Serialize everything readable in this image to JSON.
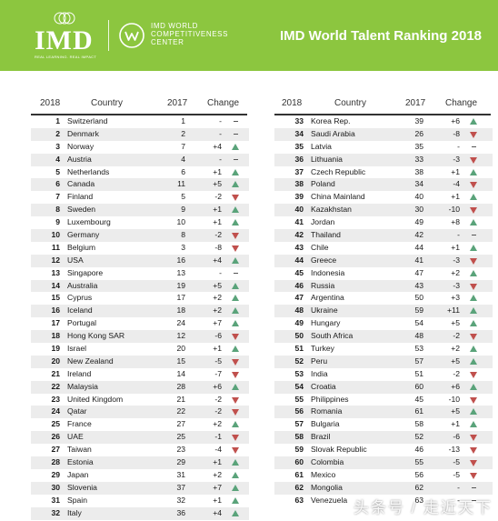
{
  "header": {
    "imd_logo": "IMD",
    "imd_tagline": "REAL LEARNING. REAL IMPACT",
    "wcc_line1": "IMD WORLD",
    "wcc_line2": "COMPETITIVENESS",
    "wcc_line3": "CENTER",
    "title": "IMD World Talent Ranking 2018",
    "brand_color": "#8cc63f"
  },
  "columns": {
    "rank": "2018",
    "country": "Country",
    "prev": "2017",
    "change": "Change"
  },
  "colors": {
    "up": "#5aa37a",
    "down": "#c0504d"
  },
  "left_rows": [
    {
      "rank": "1",
      "country": "Switzerland",
      "prev": "1",
      "change": "-",
      "dir": "none"
    },
    {
      "rank": "2",
      "country": "Denmark",
      "prev": "2",
      "change": "-",
      "dir": "none"
    },
    {
      "rank": "3",
      "country": "Norway",
      "prev": "7",
      "change": "+4",
      "dir": "up"
    },
    {
      "rank": "4",
      "country": "Austria",
      "prev": "4",
      "change": "-",
      "dir": "none"
    },
    {
      "rank": "5",
      "country": "Netherlands",
      "prev": "6",
      "change": "+1",
      "dir": "up"
    },
    {
      "rank": "6",
      "country": "Canada",
      "prev": "11",
      "change": "+5",
      "dir": "up"
    },
    {
      "rank": "7",
      "country": "Finland",
      "prev": "5",
      "change": "-2",
      "dir": "down"
    },
    {
      "rank": "8",
      "country": "Sweden",
      "prev": "9",
      "change": "+1",
      "dir": "up"
    },
    {
      "rank": "9",
      "country": "Luxembourg",
      "prev": "10",
      "change": "+1",
      "dir": "up"
    },
    {
      "rank": "10",
      "country": "Germany",
      "prev": "8",
      "change": "-2",
      "dir": "down"
    },
    {
      "rank": "11",
      "country": "Belgium",
      "prev": "3",
      "change": "-8",
      "dir": "down"
    },
    {
      "rank": "12",
      "country": "USA",
      "prev": "16",
      "change": "+4",
      "dir": "up"
    },
    {
      "rank": "13",
      "country": "Singapore",
      "prev": "13",
      "change": "-",
      "dir": "none"
    },
    {
      "rank": "14",
      "country": "Australia",
      "prev": "19",
      "change": "+5",
      "dir": "up"
    },
    {
      "rank": "15",
      "country": "Cyprus",
      "prev": "17",
      "change": "+2",
      "dir": "up"
    },
    {
      "rank": "16",
      "country": "Iceland",
      "prev": "18",
      "change": "+2",
      "dir": "up"
    },
    {
      "rank": "17",
      "country": "Portugal",
      "prev": "24",
      "change": "+7",
      "dir": "up"
    },
    {
      "rank": "18",
      "country": "Hong Kong SAR",
      "prev": "12",
      "change": "-6",
      "dir": "down"
    },
    {
      "rank": "19",
      "country": "Israel",
      "prev": "20",
      "change": "+1",
      "dir": "up"
    },
    {
      "rank": "20",
      "country": "New Zealand",
      "prev": "15",
      "change": "-5",
      "dir": "down"
    },
    {
      "rank": "21",
      "country": "Ireland",
      "prev": "14",
      "change": "-7",
      "dir": "down"
    },
    {
      "rank": "22",
      "country": "Malaysia",
      "prev": "28",
      "change": "+6",
      "dir": "up"
    },
    {
      "rank": "23",
      "country": "United Kingdom",
      "prev": "21",
      "change": "-2",
      "dir": "down"
    },
    {
      "rank": "24",
      "country": "Qatar",
      "prev": "22",
      "change": "-2",
      "dir": "down"
    },
    {
      "rank": "25",
      "country": "France",
      "prev": "27",
      "change": "+2",
      "dir": "up"
    },
    {
      "rank": "26",
      "country": "UAE",
      "prev": "25",
      "change": "-1",
      "dir": "down"
    },
    {
      "rank": "27",
      "country": "Taiwan",
      "prev": "23",
      "change": "-4",
      "dir": "down"
    },
    {
      "rank": "28",
      "country": "Estonia",
      "prev": "29",
      "change": "+1",
      "dir": "up"
    },
    {
      "rank": "29",
      "country": "Japan",
      "prev": "31",
      "change": "+2",
      "dir": "up"
    },
    {
      "rank": "30",
      "country": "Slovenia",
      "prev": "37",
      "change": "+7",
      "dir": "up"
    },
    {
      "rank": "31",
      "country": "Spain",
      "prev": "32",
      "change": "+1",
      "dir": "up"
    },
    {
      "rank": "32",
      "country": "Italy",
      "prev": "36",
      "change": "+4",
      "dir": "up"
    }
  ],
  "right_rows": [
    {
      "rank": "33",
      "country": "Korea Rep.",
      "prev": "39",
      "change": "+6",
      "dir": "up"
    },
    {
      "rank": "34",
      "country": "Saudi Arabia",
      "prev": "26",
      "change": "-8",
      "dir": "down"
    },
    {
      "rank": "35",
      "country": "Latvia",
      "prev": "35",
      "change": "-",
      "dir": "none"
    },
    {
      "rank": "36",
      "country": "Lithuania",
      "prev": "33",
      "change": "-3",
      "dir": "down"
    },
    {
      "rank": "37",
      "country": "Czech Republic",
      "prev": "38",
      "change": "+1",
      "dir": "up"
    },
    {
      "rank": "38",
      "country": "Poland",
      "prev": "34",
      "change": "-4",
      "dir": "down"
    },
    {
      "rank": "39",
      "country": "China Mainland",
      "prev": "40",
      "change": "+1",
      "dir": "up"
    },
    {
      "rank": "40",
      "country": "Kazakhstan",
      "prev": "30",
      "change": "-10",
      "dir": "down"
    },
    {
      "rank": "41",
      "country": "Jordan",
      "prev": "49",
      "change": "+8",
      "dir": "up"
    },
    {
      "rank": "42",
      "country": "Thailand",
      "prev": "42",
      "change": "-",
      "dir": "none"
    },
    {
      "rank": "43",
      "country": "Chile",
      "prev": "44",
      "change": "+1",
      "dir": "up"
    },
    {
      "rank": "44",
      "country": "Greece",
      "prev": "41",
      "change": "-3",
      "dir": "down"
    },
    {
      "rank": "45",
      "country": "Indonesia",
      "prev": "47",
      "change": "+2",
      "dir": "up"
    },
    {
      "rank": "46",
      "country": "Russia",
      "prev": "43",
      "change": "-3",
      "dir": "down"
    },
    {
      "rank": "47",
      "country": "Argentina",
      "prev": "50",
      "change": "+3",
      "dir": "up"
    },
    {
      "rank": "48",
      "country": "Ukraine",
      "prev": "59",
      "change": "+11",
      "dir": "up"
    },
    {
      "rank": "49",
      "country": "Hungary",
      "prev": "54",
      "change": "+5",
      "dir": "up"
    },
    {
      "rank": "50",
      "country": "South Africa",
      "prev": "48",
      "change": "-2",
      "dir": "down"
    },
    {
      "rank": "51",
      "country": "Turkey",
      "prev": "53",
      "change": "+2",
      "dir": "up"
    },
    {
      "rank": "52",
      "country": "Peru",
      "prev": "57",
      "change": "+5",
      "dir": "up"
    },
    {
      "rank": "53",
      "country": "India",
      "prev": "51",
      "change": "-2",
      "dir": "down"
    },
    {
      "rank": "54",
      "country": "Croatia",
      "prev": "60",
      "change": "+6",
      "dir": "up"
    },
    {
      "rank": "55",
      "country": "Philippines",
      "prev": "45",
      "change": "-10",
      "dir": "down"
    },
    {
      "rank": "56",
      "country": "Romania",
      "prev": "61",
      "change": "+5",
      "dir": "up"
    },
    {
      "rank": "57",
      "country": "Bulgaria",
      "prev": "58",
      "change": "+1",
      "dir": "up"
    },
    {
      "rank": "58",
      "country": "Brazil",
      "prev": "52",
      "change": "-6",
      "dir": "down"
    },
    {
      "rank": "59",
      "country": "Slovak Republic",
      "prev": "46",
      "change": "-13",
      "dir": "down"
    },
    {
      "rank": "60",
      "country": "Colombia",
      "prev": "55",
      "change": "-5",
      "dir": "down"
    },
    {
      "rank": "61",
      "country": "Mexico",
      "prev": "56",
      "change": "-5",
      "dir": "down"
    },
    {
      "rank": "62",
      "country": "Mongolia",
      "prev": "62",
      "change": "-",
      "dir": "none"
    },
    {
      "rank": "63",
      "country": "Venezuela",
      "prev": "63",
      "change": "-",
      "dir": "none"
    }
  ],
  "watermark": "头条号 / 走近天下"
}
